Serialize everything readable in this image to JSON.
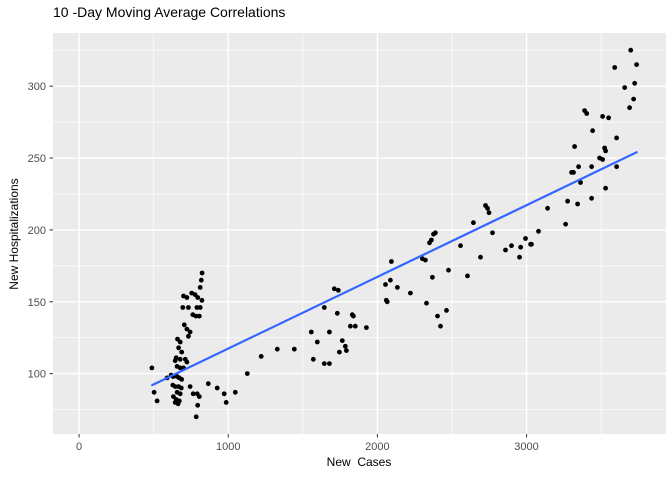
{
  "title": "10 -Day Moving Average Correlations",
  "chart_data": {
    "type": "scatter",
    "title": "10 -Day Moving Average Correlations",
    "xlabel": "New  Cases",
    "ylabel": "New Hospitalizations",
    "xlim": [
      -175,
      3935
    ],
    "ylim": [
      58,
      337
    ],
    "x_ticks": [
      0,
      1000,
      2000,
      3000
    ],
    "x_minor_ticks": [
      500,
      1500,
      2500,
      3500
    ],
    "y_ticks": [
      100,
      150,
      200,
      250,
      300
    ],
    "y_minor_ticks": [
      75,
      125,
      175,
      225,
      275,
      325
    ],
    "grid": true,
    "legend_position": "none",
    "colors": {
      "panel_background": "#EBEBEB",
      "grid": "#FFFFFF",
      "points": "#000000",
      "smooth_line": "#3366FF",
      "tick_mark": "#333333",
      "tick_label": "#4D4D4D"
    },
    "smooth_line": {
      "x": [
        490,
        3738
      ],
      "y": [
        92,
        254
      ]
    },
    "points": [
      [
        488,
        104
      ],
      [
        503,
        87
      ],
      [
        523,
        81
      ],
      [
        590,
        97
      ],
      [
        617,
        99
      ],
      [
        628,
        92
      ],
      [
        630,
        98
      ],
      [
        632,
        84
      ],
      [
        644,
        109
      ],
      [
        645,
        91
      ],
      [
        644,
        80
      ],
      [
        651,
        111
      ],
      [
        651,
        82
      ],
      [
        657,
        105
      ],
      [
        657,
        98
      ],
      [
        657,
        87
      ],
      [
        660,
        124
      ],
      [
        664,
        79
      ],
      [
        667,
        118
      ],
      [
        667,
        91
      ],
      [
        672,
        97
      ],
      [
        672,
        81
      ],
      [
        678,
        122
      ],
      [
        678,
        110
      ],
      [
        678,
        104
      ],
      [
        678,
        86
      ],
      [
        685,
        90
      ],
      [
        688,
        115
      ],
      [
        688,
        96
      ],
      [
        695,
        146
      ],
      [
        700,
        154
      ],
      [
        700,
        104
      ],
      [
        705,
        134
      ],
      [
        712,
        110
      ],
      [
        723,
        153
      ],
      [
        723,
        131
      ],
      [
        723,
        108
      ],
      [
        733,
        146
      ],
      [
        733,
        126
      ],
      [
        744,
        129
      ],
      [
        744,
        91
      ],
      [
        755,
        156
      ],
      [
        762,
        141
      ],
      [
        765,
        86
      ],
      [
        777,
        155
      ],
      [
        783,
        140
      ],
      [
        785,
        70
      ],
      [
        790,
        146
      ],
      [
        792,
        86
      ],
      [
        795,
        78
      ],
      [
        795,
        153
      ],
      [
        806,
        140
      ],
      [
        806,
        84
      ],
      [
        812,
        160
      ],
      [
        812,
        146
      ],
      [
        819,
        165
      ],
      [
        823,
        151
      ],
      [
        825,
        170
      ],
      [
        866,
        93
      ],
      [
        926,
        90
      ],
      [
        973,
        86
      ],
      [
        986,
        80
      ],
      [
        1047,
        87
      ],
      [
        1128,
        100
      ],
      [
        1221,
        112
      ],
      [
        1329,
        117
      ],
      [
        1443,
        117
      ],
      [
        1557,
        129
      ],
      [
        1570,
        110
      ],
      [
        1597,
        122
      ],
      [
        1644,
        146
      ],
      [
        1644,
        107
      ],
      [
        1678,
        129
      ],
      [
        1678,
        107
      ],
      [
        1711,
        159
      ],
      [
        1731,
        142
      ],
      [
        1738,
        158
      ],
      [
        1745,
        115
      ],
      [
        1765,
        123
      ],
      [
        1785,
        119
      ],
      [
        1792,
        116
      ],
      [
        1819,
        133
      ],
      [
        1832,
        141
      ],
      [
        1839,
        140
      ],
      [
        1852,
        133
      ],
      [
        1926,
        132
      ],
      [
        2054,
        162
      ],
      [
        2060,
        151
      ],
      [
        2066,
        150
      ],
      [
        2087,
        165
      ],
      [
        2094,
        178
      ],
      [
        2134,
        160
      ],
      [
        2221,
        156
      ],
      [
        2302,
        180
      ],
      [
        2322,
        179
      ],
      [
        2329,
        149
      ],
      [
        2349,
        191
      ],
      [
        2362,
        193
      ],
      [
        2369,
        167
      ],
      [
        2376,
        197
      ],
      [
        2389,
        198
      ],
      [
        2403,
        140
      ],
      [
        2423,
        133
      ],
      [
        2463,
        144
      ],
      [
        2477,
        172
      ],
      [
        2557,
        189
      ],
      [
        2604,
        168
      ],
      [
        2644,
        205
      ],
      [
        2691,
        181
      ],
      [
        2725,
        217
      ],
      [
        2738,
        215
      ],
      [
        2748,
        212
      ],
      [
        2772,
        198
      ],
      [
        2859,
        186
      ],
      [
        2899,
        189
      ],
      [
        2953,
        181
      ],
      [
        2960,
        188
      ],
      [
        2993,
        194
      ],
      [
        3027,
        190
      ],
      [
        3033,
        190
      ],
      [
        3080,
        199
      ],
      [
        3141,
        215
      ],
      [
        3262,
        204
      ],
      [
        3275,
        220
      ],
      [
        3302,
        240
      ],
      [
        3315,
        240
      ],
      [
        3322,
        258
      ],
      [
        3342,
        218
      ],
      [
        3349,
        244
      ],
      [
        3362,
        233
      ],
      [
        3389,
        283
      ],
      [
        3403,
        281
      ],
      [
        3436,
        244
      ],
      [
        3436,
        222
      ],
      [
        3443,
        269
      ],
      [
        3490,
        250
      ],
      [
        3510,
        279
      ],
      [
        3510,
        249
      ],
      [
        3523,
        257
      ],
      [
        3530,
        255
      ],
      [
        3530,
        229
      ],
      [
        3550,
        278
      ],
      [
        3591,
        313
      ],
      [
        3604,
        264
      ],
      [
        3604,
        244
      ],
      [
        3658,
        299
      ],
      [
        3691,
        285
      ],
      [
        3698,
        325
      ],
      [
        3718,
        291
      ],
      [
        3725,
        302
      ],
      [
        3738,
        315
      ]
    ]
  }
}
